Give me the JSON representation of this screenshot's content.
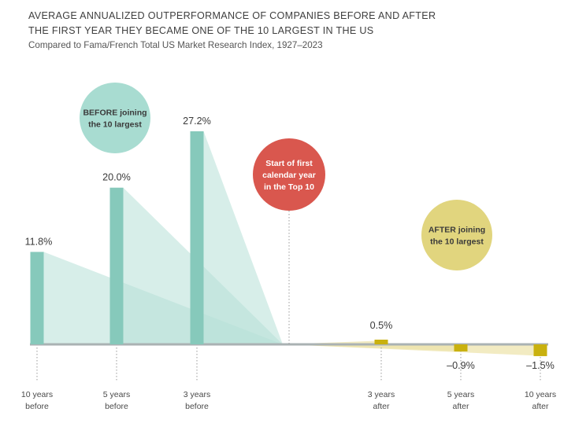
{
  "chart_data": {
    "type": "bar",
    "title_line1": "AVERAGE ANNUALIZED OUTPERFORMANCE OF COMPANIES BEFORE AND AFTER",
    "title_line2": "THE FIRST YEAR THEY BECAME ONE OF THE 10 LARGEST IN THE US",
    "subtitle": "Compared to Fama/French Total US Market Research Index, 1927–2023",
    "ylabel": "",
    "xlabel": "",
    "ylim": [
      -2,
      28
    ],
    "unit": "%",
    "categories": [
      "10 years before",
      "5 years before",
      "3 years before",
      "3 years after",
      "5 years after",
      "10 years after"
    ],
    "tick_labels": [
      [
        "10 years",
        "before"
      ],
      [
        "5 years",
        "before"
      ],
      [
        "3 years",
        "before"
      ],
      [
        "3 years",
        "after"
      ],
      [
        "5 years",
        "after"
      ],
      [
        "10 years",
        "after"
      ]
    ],
    "values": [
      11.8,
      20.0,
      27.2,
      0.5,
      -0.9,
      -1.5
    ],
    "value_labels": [
      "11.8%",
      "20.0%",
      "27.2%",
      "0.5%",
      "–0.9%",
      "–1.5%"
    ],
    "annotations": {
      "before": {
        "lines": [
          "BEFORE joining",
          "the 10 largest"
        ],
        "color": "#a8dcd1"
      },
      "start": {
        "lines": [
          "Start of first",
          "calendar year",
          "in the Top 10"
        ],
        "color": "#d9574e"
      },
      "after": {
        "lines": [
          "AFTER joining",
          "the 10 largest"
        ],
        "color": "#e1d57e"
      }
    },
    "colors": {
      "before_bar": "#86c9bb",
      "before_fill": "#b7e0d7",
      "after_bar": "#c9b10f",
      "after_fill": "#ece3a8",
      "baseline": "#aab2b3"
    }
  }
}
